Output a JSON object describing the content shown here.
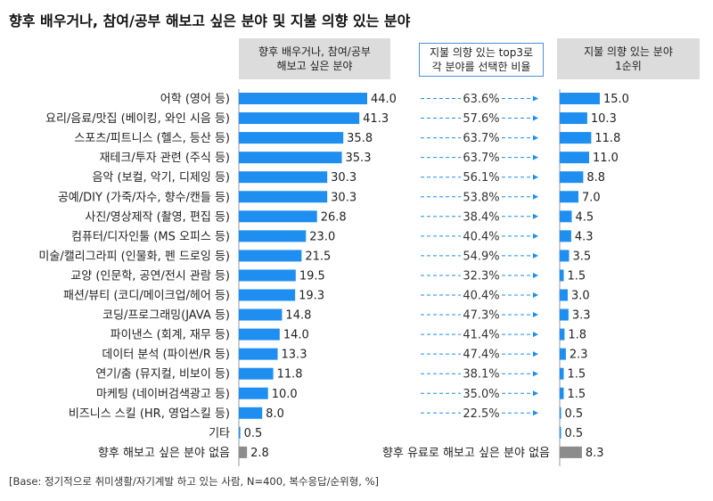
{
  "title": "향후 배우거나, 참여/공부 해보고 싶은 분야 및 지불 의향 있는 분야",
  "headers": {
    "left": [
      "향후 배우거나, 참여/공부",
      "해보고 싶은 분야"
    ],
    "middle": [
      "지불 의향 있는 top3로",
      "각 분야를 선택한 비율"
    ],
    "right": [
      "지불 의향 있는 분야",
      "1순위"
    ]
  },
  "footnote": "[Base: 정기적으로 취미생활/자기계발 하고 있는 사람, N=400, 복수응답/순위형, %]",
  "colors": {
    "bar": "#1f8ef1",
    "gray_bar": "#8c8c8c",
    "arrow": "#1f8ef1"
  },
  "chart_data": {
    "type": "bar",
    "orientation": "horizontal",
    "categories": [
      "어학 (영어 등)",
      "요리/음료/맛집 (베이킹, 와인 시음 등)",
      "스포츠/피트니스 (헬스, 등산 등)",
      "재테크/투자 관련 (주식 등)",
      "음악 (보컬, 악기, 디제잉 등)",
      "공예/DIY (가죽/자수, 향수/캔들 등)",
      "사진/영상제작 (촬영, 편집 등)",
      "컴퓨터/디자인툴 (MS 오피스 등)",
      "미술/캘리그라피 (인물화, 펜 드로잉 등)",
      "교양 (인문학, 공연/전시 관람 등)",
      "패션/뷰티 (코디/메이크업/헤어 등)",
      "코딩/프로그래밍(JAVA 등)",
      "파이낸스 (회계, 재무 등)",
      "데이터 분석 (파이썬/R 등)",
      "연기/춤 (뮤지컬, 비보이 등)",
      "마케팅 (네이버검색광고 등)",
      "비즈니스 스킬 (HR, 영업스킬 등)",
      "기타"
    ],
    "series": [
      {
        "name": "향후 배우거나, 참여/공부 해보고 싶은 분야",
        "values": [
          44.0,
          41.3,
          35.8,
          35.3,
          30.3,
          30.3,
          26.8,
          23.0,
          21.5,
          19.5,
          19.3,
          14.8,
          14.0,
          13.3,
          11.8,
          10.0,
          8.0,
          0.5
        ]
      },
      {
        "name": "지불 의향 있는 top3로 각 분야를 선택한 비율",
        "values": [
          "63.6%",
          "57.6%",
          "63.7%",
          "63.7%",
          "56.1%",
          "53.8%",
          "38.4%",
          "40.4%",
          "54.9%",
          "32.3%",
          "40.4%",
          "47.3%",
          "41.4%",
          "47.4%",
          "38.1%",
          "35.0%",
          "22.5%",
          ""
        ]
      },
      {
        "name": "지불 의향 있는 분야 1순위",
        "values": [
          15.0,
          10.3,
          11.8,
          11.0,
          8.8,
          7.0,
          4.5,
          4.3,
          3.5,
          1.5,
          3.0,
          3.3,
          1.8,
          2.3,
          1.5,
          1.5,
          0.5,
          0.5
        ]
      }
    ],
    "none_rows": {
      "left": {
        "label": "향후 해보고 싶은 분야 없음",
        "value": 2.8
      },
      "right": {
        "label": "향후 유료로 해보고 싶은 분야 없음",
        "value": 8.3
      }
    },
    "xlim_left": [
      0,
      44.0
    ],
    "xlim_right": [
      0,
      15.0
    ]
  }
}
